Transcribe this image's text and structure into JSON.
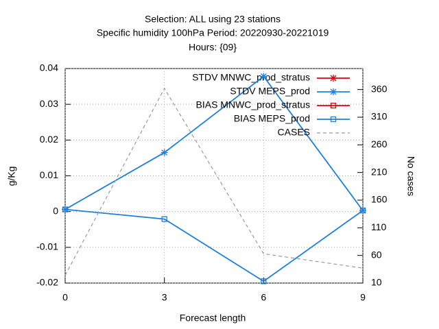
{
  "chart_data": {
    "type": "line",
    "title": [
      "Selection: ALL using    23 stations",
      "Specific humidity 100hPa  Period: 20220930-20221019",
      "Hours: {09}"
    ],
    "xlabel": "Forecast length",
    "ylabel": "g/Kg",
    "y2label": "No cases",
    "x": [
      0,
      3,
      6,
      9
    ],
    "xlim": [
      0,
      9
    ],
    "xticks": [
      0,
      3,
      6,
      9
    ],
    "ylim": [
      -0.02,
      0.04
    ],
    "yticks": [
      -0.02,
      -0.01,
      0,
      0.01,
      0.02,
      0.03,
      0.04
    ],
    "y2lim": [
      10,
      398
    ],
    "y2ticks": [
      10,
      60,
      110,
      160,
      210,
      260,
      310,
      360
    ],
    "grid": true,
    "legend": "top-right",
    "series": [
      {
        "name": "STDV MNWC_prod_stratus",
        "color": "#e00000",
        "marker": "star",
        "values": [
          null,
          null,
          null,
          null
        ]
      },
      {
        "name": "STDV MEPS_prod",
        "color": "#1e7fdb",
        "marker": "star",
        "values": [
          0.0006,
          0.0165,
          0.0378,
          0.0003
        ]
      },
      {
        "name": "BIAS MNWC_prod_stratus",
        "color": "#e00000",
        "marker": "square",
        "values": [
          null,
          null,
          null,
          null
        ]
      },
      {
        "name": "BIAS MEPS_prod",
        "color": "#1e7fdb",
        "marker": "square",
        "values": [
          0.0006,
          -0.0021,
          -0.0195,
          0.0003
        ]
      },
      {
        "name": "CASES",
        "color": "#999999",
        "dash": true,
        "axis": "y2",
        "values": [
          24,
          362,
          63,
          37
        ]
      }
    ]
  }
}
